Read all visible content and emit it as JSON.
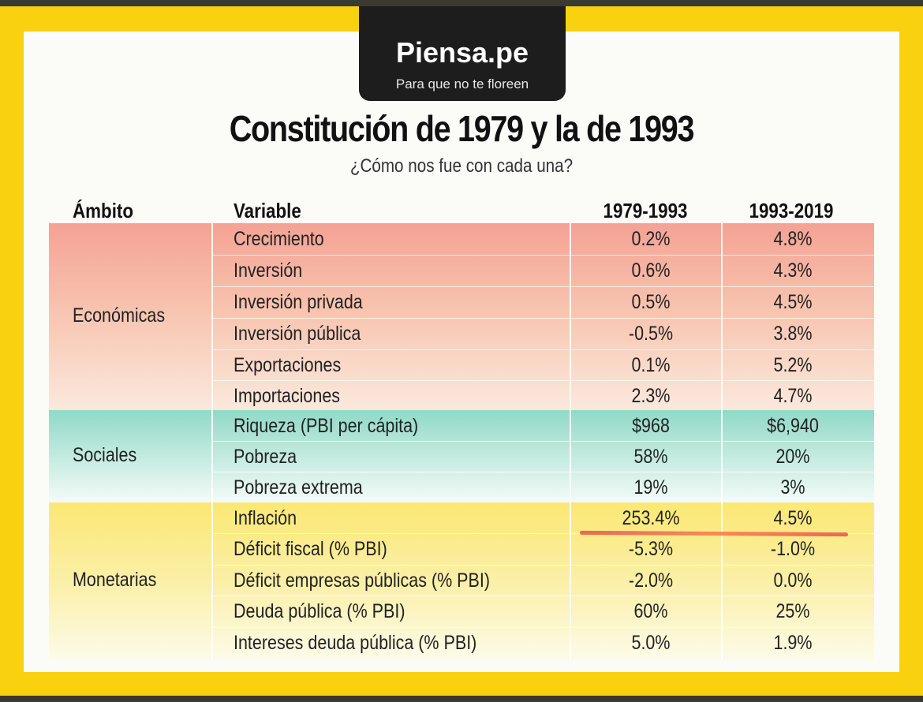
{
  "brand": {
    "name": "Piensa.pe",
    "tagline": "Para que no te floreen"
  },
  "title": "Constitución de 1979 y la de 1993",
  "subtitle": "¿Cómo nos fue con cada una?",
  "headers": {
    "ambito": "Ámbito",
    "variable": "Variable",
    "period1": "1979-1993",
    "period2": "1993-2019"
  },
  "sections": [
    {
      "ambito": "Económicas",
      "color": "#f4a294",
      "rows": [
        {
          "variable": "Crecimiento",
          "v1": "0.2%",
          "v2": "4.8%"
        },
        {
          "variable": "Inversión",
          "v1": "0.6%",
          "v2": "4.3%"
        },
        {
          "variable": "Inversión privada",
          "v1": "0.5%",
          "v2": "4.5%"
        },
        {
          "variable": "Inversión pública",
          "v1": "-0.5%",
          "v2": "3.8%"
        },
        {
          "variable": "Exportaciones",
          "v1": "0.1%",
          "v2": "5.2%"
        },
        {
          "variable": "Importaciones",
          "v1": "2.3%",
          "v2": "4.7%"
        }
      ]
    },
    {
      "ambito": "Sociales",
      "color": "#90d9c8",
      "rows": [
        {
          "variable": "Riqueza (PBI per cápita)",
          "v1": "$968",
          "v2": "$6,940"
        },
        {
          "variable": "Pobreza",
          "v1": "58%",
          "v2": "20%"
        },
        {
          "variable": "Pobreza extrema",
          "v1": "19%",
          "v2": "3%"
        }
      ]
    },
    {
      "ambito": "Monetarias",
      "color": "#fbe873",
      "rows": [
        {
          "variable": "Inflación",
          "v1": "253.4%",
          "v2": "4.5%"
        },
        {
          "variable": "Déficit fiscal (% PBI)",
          "v1": "-5.3%",
          "v2": "-1.0%"
        },
        {
          "variable": "Déficit empresas públicas (% PBI)",
          "v1": "-2.0%",
          "v2": "0.0%"
        },
        {
          "variable": "Deuda pública (% PBI)",
          "v1": "60%",
          "v2": "25%"
        },
        {
          "variable": "Intereses deuda pública (% PBI)",
          "v1": "5.0%",
          "v2": "1.9%"
        }
      ]
    }
  ],
  "colors": {
    "frame": "#f9d10e",
    "brand_bg": "#1d1d1d",
    "highlight": "#e8504a"
  }
}
